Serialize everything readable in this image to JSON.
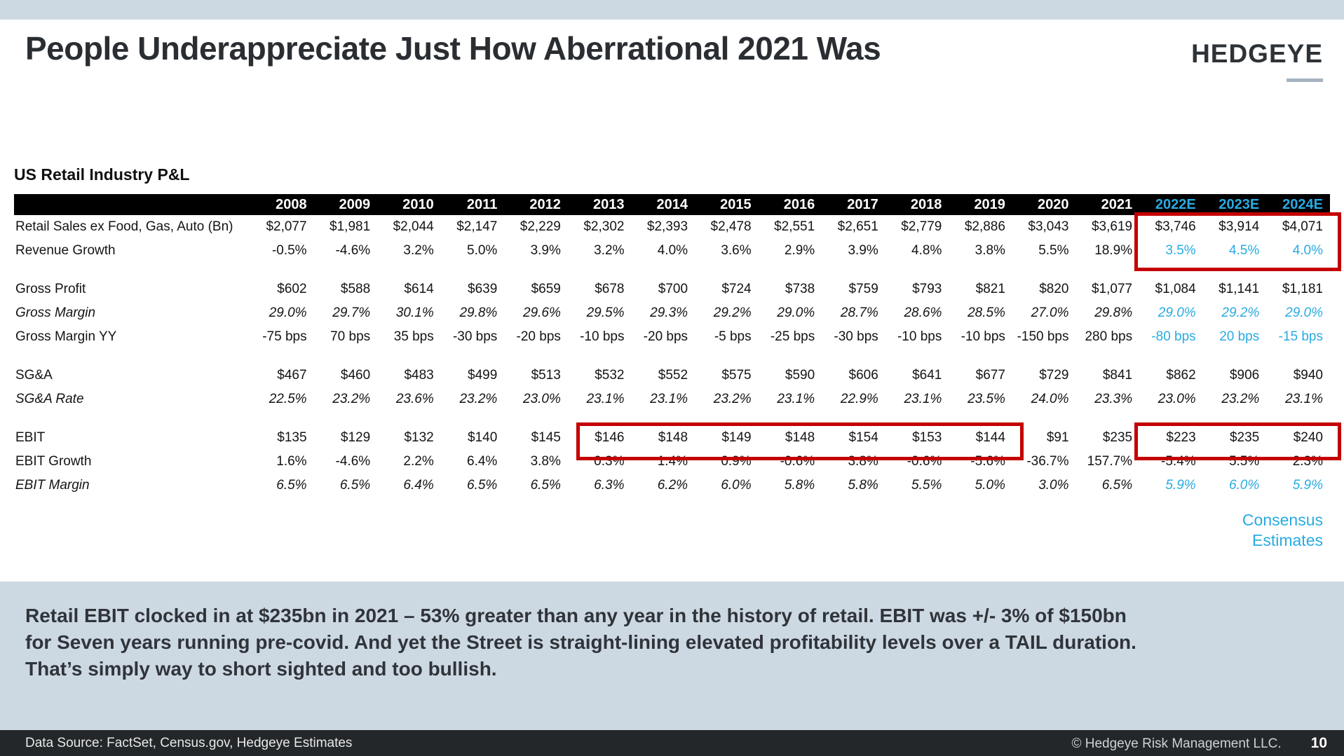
{
  "slide": {
    "title": "People Underappreciate Just How Aberrational 2021 Was",
    "logo": "HEDGEYE"
  },
  "colors": {
    "accent_blue": "#29abe2",
    "highlight_red": "#c40000",
    "band_bg": "#cdd9e2",
    "footer_bg": "#232729",
    "header_bar_bg": "#000000"
  },
  "table": {
    "title": "US Retail Industry P&L",
    "columns": [
      "",
      "2008",
      "2009",
      "2010",
      "2011",
      "2012",
      "2013",
      "2014",
      "2015",
      "2016",
      "2017",
      "2018",
      "2019",
      "2020",
      "2021",
      "2022E",
      "2023E",
      "2024E"
    ],
    "estimate_column_count": 3,
    "rows": [
      {
        "label": "Retail Sales ex Food, Gas, Auto (Bn)",
        "italic": false,
        "blue_estimates": false,
        "values": [
          "$2,077",
          "$1,981",
          "$2,044",
          "$2,147",
          "$2,229",
          "$2,302",
          "$2,393",
          "$2,478",
          "$2,551",
          "$2,651",
          "$2,779",
          "$2,886",
          "$3,043",
          "$3,619",
          "$3,746",
          "$3,914",
          "$4,071"
        ]
      },
      {
        "label": "Revenue Growth",
        "italic": false,
        "blue_estimates": true,
        "values": [
          "-0.5%",
          "-4.6%",
          "3.2%",
          "5.0%",
          "3.9%",
          "3.2%",
          "4.0%",
          "3.6%",
          "2.9%",
          "3.9%",
          "4.8%",
          "3.8%",
          "5.5%",
          "18.9%",
          "3.5%",
          "4.5%",
          "4.0%"
        ]
      },
      {
        "spacer": true
      },
      {
        "label": "Gross Profit",
        "italic": false,
        "blue_estimates": false,
        "values": [
          "$602",
          "$588",
          "$614",
          "$639",
          "$659",
          "$678",
          "$700",
          "$724",
          "$738",
          "$759",
          "$793",
          "$821",
          "$820",
          "$1,077",
          "$1,084",
          "$1,141",
          "$1,181"
        ]
      },
      {
        "label": "Gross Margin",
        "italic": true,
        "blue_estimates": true,
        "values": [
          "29.0%",
          "29.7%",
          "30.1%",
          "29.8%",
          "29.6%",
          "29.5%",
          "29.3%",
          "29.2%",
          "29.0%",
          "28.7%",
          "28.6%",
          "28.5%",
          "27.0%",
          "29.8%",
          "29.0%",
          "29.2%",
          "29.0%"
        ]
      },
      {
        "label": "Gross Margin YY",
        "italic": false,
        "blue_estimates": true,
        "values": [
          "-75 bps",
          "70 bps",
          "35 bps",
          "-30 bps",
          "-20 bps",
          "-10 bps",
          "-20 bps",
          "-5 bps",
          "-25 bps",
          "-30 bps",
          "-10 bps",
          "-10 bps",
          "-150 bps",
          "280 bps",
          "-80 bps",
          "20 bps",
          "-15 bps"
        ]
      },
      {
        "spacer": true
      },
      {
        "label": "SG&A",
        "italic": false,
        "blue_estimates": false,
        "values": [
          "$467",
          "$460",
          "$483",
          "$499",
          "$513",
          "$532",
          "$552",
          "$575",
          "$590",
          "$606",
          "$641",
          "$677",
          "$729",
          "$841",
          "$862",
          "$906",
          "$940"
        ]
      },
      {
        "label": "SG&A Rate",
        "italic": true,
        "blue_estimates": false,
        "values": [
          "22.5%",
          "23.2%",
          "23.6%",
          "23.2%",
          "23.0%",
          "23.1%",
          "23.1%",
          "23.2%",
          "23.1%",
          "22.9%",
          "23.1%",
          "23.5%",
          "24.0%",
          "23.3%",
          "23.0%",
          "23.2%",
          "23.1%"
        ]
      },
      {
        "spacer": true
      },
      {
        "label": "EBIT",
        "italic": false,
        "blue_estimates": false,
        "values": [
          "$135",
          "$129",
          "$132",
          "$140",
          "$145",
          "$146",
          "$148",
          "$149",
          "$148",
          "$154",
          "$153",
          "$144",
          "$91",
          "$235",
          "$223",
          "$235",
          "$240"
        ]
      },
      {
        "label": "EBIT Growth",
        "italic": false,
        "blue_estimates": false,
        "values": [
          "1.6%",
          "-4.6%",
          "2.2%",
          "6.4%",
          "3.8%",
          "0.3%",
          "1.4%",
          "0.9%",
          "-0.6%",
          "3.8%",
          "-0.6%",
          "-5.6%",
          "-36.7%",
          "157.7%",
          "-5.4%",
          "5.5%",
          "2.3%"
        ]
      },
      {
        "label": "EBIT Margin",
        "italic": true,
        "blue_estimates": true,
        "values": [
          "6.5%",
          "6.5%",
          "6.4%",
          "6.5%",
          "6.5%",
          "6.3%",
          "6.2%",
          "6.0%",
          "5.8%",
          "5.8%",
          "5.5%",
          "5.0%",
          "3.0%",
          "6.5%",
          "5.9%",
          "6.0%",
          "5.9%"
        ]
      }
    ]
  },
  "consensus": {
    "line1": "Consensus",
    "line2": "Estimates"
  },
  "callout": {
    "lines": [
      "Retail EBIT clocked in at $235bn in 2021 – 53% greater than any year in the history of retail. EBIT was +/- 3% of $150bn",
      "for Seven years running pre-covid. And yet the Street is straight-lining elevated profitability levels over a TAIL duration.",
      "That’s simply way to short sighted and too bullish."
    ]
  },
  "footer": {
    "source": "Data Source: FactSet, Census.gov, Hedgeye Estimates",
    "copyright": "© Hedgeye Risk Management LLC.",
    "page": "10"
  }
}
